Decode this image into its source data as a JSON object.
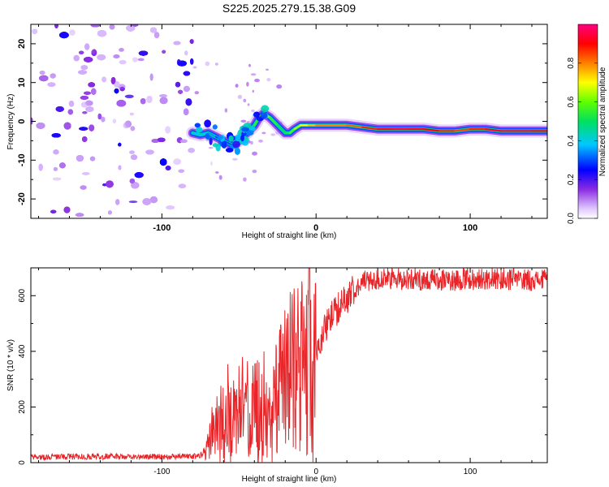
{
  "title": "S225.2025.279.15.38.G09",
  "colors": {
    "snr_line": "#e8262a",
    "noise": "#9b30ff",
    "signal_core": "#e0103a",
    "axis": "#000000"
  },
  "chart_data": [
    {
      "type": "heatmap",
      "title": "S225.2025.279.15.38.G09",
      "xlabel": "Height of straight line (km)",
      "ylabel": "Frequency (Hz)",
      "xlim": [
        -185,
        150
      ],
      "ylim": [
        -25,
        25
      ],
      "xticks": [
        -100,
        0,
        100
      ],
      "yticks": [
        -20,
        -10,
        0,
        10,
        20
      ],
      "xtick_labels": [
        "-100",
        "0",
        "100"
      ],
      "ytick_labels": [
        "-20",
        "-10",
        "0",
        "10",
        "20"
      ],
      "colorbar": {
        "label": "Normalized spectral amplitude",
        "range": [
          0,
          1
        ],
        "ticks": [
          0.0,
          0.2,
          0.4,
          0.6,
          0.8
        ],
        "tick_labels": [
          "0.0",
          "0.2",
          "0.4",
          "0.6",
          "0.8"
        ]
      },
      "noise_region": {
        "x_range": [
          -185,
          -80
        ],
        "freq_range": [
          -25,
          25
        ]
      },
      "signal_trace": {
        "x": [
          -80,
          -75,
          -70,
          -65,
          -60,
          -55,
          -50,
          -45,
          -40,
          -37,
          -34,
          -30,
          -25,
          -20,
          -17,
          -14,
          -10,
          -5,
          0,
          10,
          20,
          30,
          40,
          50,
          60,
          70,
          80,
          90,
          100,
          110,
          120,
          130,
          140,
          150
        ],
        "freq": [
          -3,
          -3.5,
          -3,
          -4,
          -5,
          -6,
          -5,
          -3,
          -1,
          1,
          2,
          1,
          -1,
          -3,
          -3,
          -2,
          -1,
          -1,
          -1,
          -1,
          -1,
          -1.5,
          -2,
          -2,
          -2,
          -2,
          -2.5,
          -2.5,
          -2,
          -2,
          -2.5,
          -2.5,
          -2.5,
          -2.5
        ],
        "amplitude": [
          0.4,
          0.35,
          0.4,
          0.3,
          0.3,
          0.3,
          0.35,
          0.4,
          0.5,
          0.6,
          0.7,
          0.6,
          0.5,
          0.5,
          0.55,
          0.6,
          0.7,
          0.7,
          0.8,
          0.8,
          0.8,
          0.85,
          0.9,
          0.95,
          0.95,
          0.9,
          0.9,
          0.85,
          0.85,
          0.9,
          0.95,
          0.95,
          0.95,
          0.9
        ]
      }
    },
    {
      "type": "line",
      "title": "",
      "xlabel": "Height of straight line (km)",
      "ylabel": "SNR (10 * v/v)",
      "xlim": [
        -185,
        150
      ],
      "ylim": [
        0,
        700
      ],
      "xticks": [
        -100,
        0,
        100
      ],
      "yticks": [
        0,
        200,
        400,
        600
      ],
      "xtick_labels": [
        "-100",
        "0",
        "100"
      ],
      "ytick_labels": [
        "0",
        "200",
        "400",
        "600"
      ],
      "series": [
        {
          "name": "SNR",
          "x": [
            -185,
            -150,
            -120,
            -90,
            -75,
            -70,
            -65,
            -60,
            -55,
            -50,
            -45,
            -40,
            -35,
            -30,
            -25,
            -20,
            -15,
            -10,
            -5,
            0,
            5,
            10,
            15,
            20,
            25,
            30,
            40,
            60,
            80,
            100,
            120,
            150
          ],
          "values": [
            20,
            22,
            22,
            22,
            25,
            60,
            120,
            160,
            150,
            180,
            160,
            200,
            180,
            150,
            260,
            300,
            330,
            350,
            380,
            420,
            470,
            520,
            560,
            590,
            630,
            650,
            660,
            660,
            655,
            660,
            660,
            655
          ]
        }
      ]
    }
  ]
}
